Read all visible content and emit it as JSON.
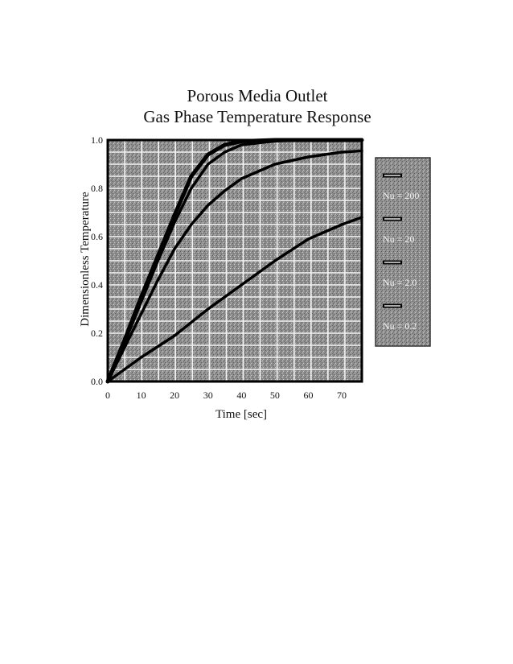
{
  "chart_data": {
    "type": "line",
    "title": "Porous Media Outlet",
    "subtitle": "Gas Phase Temperature Response",
    "xlabel": "Time [sec]",
    "ylabel": "Dimensionless Temperature",
    "xlim": [
      0,
      76
    ],
    "ylim": [
      0,
      1.0
    ],
    "xticks": [
      0,
      10,
      20,
      30,
      40,
      50,
      60,
      70
    ],
    "yticks": [
      0.0,
      0.2,
      0.4,
      0.6,
      0.8,
      1.0
    ],
    "xtick_labels": [
      "0",
      "10",
      "20",
      "30",
      "40",
      "50",
      "60",
      "70"
    ],
    "ytick_labels": [
      "0.0",
      "0.2",
      "0.4",
      "0.6",
      "0.8",
      "1.0"
    ],
    "grid": true,
    "legend_position": "right",
    "series": [
      {
        "name": "Nu = 200",
        "x": [
          0,
          5,
          10,
          15,
          20,
          25,
          30,
          35,
          40,
          50,
          60,
          70,
          76
        ],
        "y": [
          0,
          0.17,
          0.35,
          0.52,
          0.69,
          0.85,
          0.94,
          0.98,
          0.995,
          1.0,
          1.0,
          1.0,
          1.0
        ]
      },
      {
        "name": "Nu = 20",
        "x": [
          0,
          5,
          10,
          15,
          20,
          25,
          30,
          35,
          40,
          50,
          60,
          70,
          76
        ],
        "y": [
          0,
          0.16,
          0.33,
          0.5,
          0.66,
          0.8,
          0.9,
          0.95,
          0.98,
          0.996,
          1.0,
          1.0,
          1.0
        ]
      },
      {
        "name": "Nu = 2.0",
        "x": [
          0,
          5,
          10,
          15,
          20,
          25,
          30,
          35,
          40,
          50,
          60,
          70,
          76
        ],
        "y": [
          0,
          0.14,
          0.28,
          0.42,
          0.55,
          0.65,
          0.73,
          0.79,
          0.84,
          0.9,
          0.93,
          0.95,
          0.955
        ]
      },
      {
        "name": "Nu = 0.2",
        "x": [
          0,
          5,
          10,
          20,
          30,
          40,
          50,
          60,
          70,
          76
        ],
        "y": [
          0,
          0.05,
          0.1,
          0.19,
          0.3,
          0.4,
          0.5,
          0.59,
          0.65,
          0.68
        ]
      }
    ]
  }
}
